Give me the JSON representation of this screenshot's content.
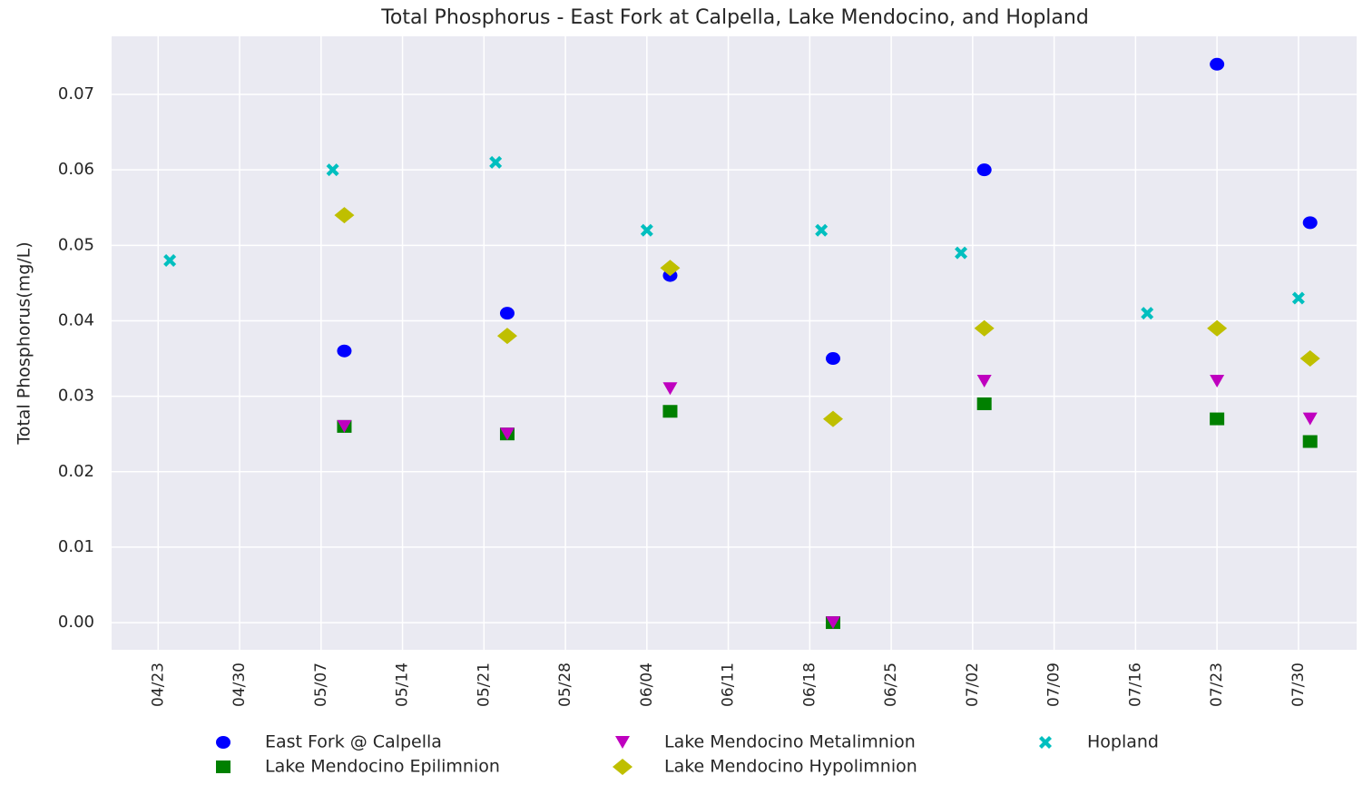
{
  "chart_data": {
    "type": "scatter",
    "title": "Total Phosphorus - East Fork at Calpella, Lake Mendocino, and Hopland",
    "ylabel": "Total Phosphorus(mg/L)",
    "grid": true,
    "legend": "lower center",
    "xlim": [
      "04/19",
      "08/04"
    ],
    "xticks": [
      "04/23",
      "04/30",
      "05/07",
      "05/14",
      "05/21",
      "05/28",
      "06/04",
      "06/11",
      "06/18",
      "06/25",
      "07/02",
      "07/09",
      "07/16",
      "07/23",
      "07/30"
    ],
    "ylim": [
      -0.0036,
      0.0777
    ],
    "yticks": [
      {
        "value": 0,
        "label": "0.00"
      },
      0.01,
      0.02,
      0.03,
      0.04,
      0.05,
      0.06,
      0.07
    ],
    "series": [
      {
        "name": "East Fork @ Calpella",
        "color": "#0000ff",
        "marker": "circle",
        "x": [
          "05/09",
          "05/23",
          "06/06",
          "06/20",
          "07/03",
          "07/23",
          "07/31"
        ],
        "values": [
          0.036,
          0.041,
          0.046,
          0.035,
          0.06,
          0.074,
          0.053
        ]
      },
      {
        "name": "Lake Mendocino Epilimnion",
        "color": "#008000",
        "marker": "square",
        "x": [
          "05/09",
          "05/23",
          "06/06",
          "06/20",
          "07/03",
          "07/23",
          "07/31"
        ],
        "values": [
          0.026,
          0.025,
          0.028,
          0,
          0.029,
          0.027,
          0.024
        ]
      },
      {
        "name": "Lake Mendocino Metalimnion",
        "color": "#bf00bf",
        "marker": "triangle-down",
        "x": [
          "05/09",
          "05/23",
          "06/06",
          "06/20",
          "07/03",
          "07/23",
          "07/31"
        ],
        "values": [
          0.026,
          0.025,
          0.031,
          0,
          0.032,
          0.032,
          0.027
        ]
      },
      {
        "name": "Lake Mendocino Hypolimnion",
        "color": "#bfbf00",
        "marker": "diamond",
        "x": [
          "05/09",
          "05/23",
          "06/06",
          "06/20",
          "07/03",
          "07/23",
          "07/31"
        ],
        "values": [
          0.054,
          0.038,
          0.047,
          0.027,
          0.039,
          0.039,
          0.035
        ]
      },
      {
        "name": "Hopland",
        "color": "#00bfbf",
        "marker": "x",
        "x": [
          "04/24",
          "05/08",
          "05/22",
          "06/04",
          "06/19",
          "07/01",
          "07/17",
          "07/30"
        ],
        "values": [
          0.048,
          0.06,
          0.061,
          0.052,
          0.052,
          0.049,
          0.041,
          0.043
        ]
      }
    ]
  }
}
